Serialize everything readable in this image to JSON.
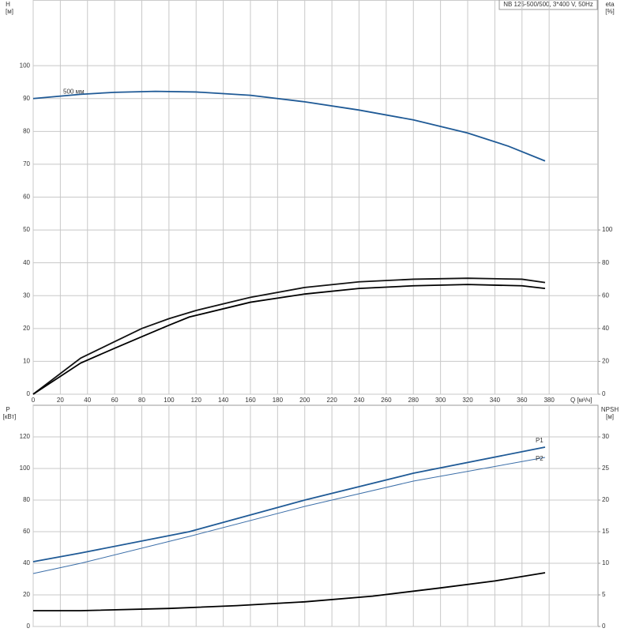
{
  "chart_data": [
    {
      "type": "line",
      "title": "NB 125-500/500, 3*400 V, 50Hz",
      "annotation": "500 мм",
      "ylabel": "H",
      "yunit": "[м]",
      "y2label": "eta",
      "y2unit": "[%]",
      "xlabel": "Q [м³/ч]",
      "xlim": [
        0,
        416
      ],
      "xticks": [
        0,
        20,
        40,
        60,
        80,
        100,
        120,
        140,
        160,
        180,
        200,
        220,
        240,
        260,
        280,
        300,
        320,
        340,
        360,
        380
      ],
      "ylim": [
        0,
        120
      ],
      "yticks": [
        0,
        10,
        20,
        30,
        40,
        50,
        60,
        70,
        80,
        90,
        100
      ],
      "y2lim": [
        0,
        240
      ],
      "y2ticks": [
        0,
        20,
        40,
        60,
        80,
        100
      ],
      "grid": true,
      "series": [
        {
          "color": "#1f5a96",
          "x": [
            0,
            35,
            60,
            90,
            120,
            160,
            200,
            240,
            280,
            320,
            350,
            377
          ],
          "values": [
            90,
            91.3,
            91.9,
            92.2,
            92,
            91,
            89,
            86.5,
            83.5,
            79.5,
            75.5,
            71
          ]
        },
        {
          "color": "#111111",
          "axis": "y2",
          "x": [
            0,
            35,
            60,
            80,
            100,
            120,
            160,
            200,
            240,
            280,
            320,
            360,
            377
          ],
          "values": [
            0,
            22,
            32,
            40,
            46,
            51,
            59,
            65,
            68.4,
            70,
            70.6,
            70,
            68
          ]
        },
        {
          "color": "#000000",
          "axis": "y2",
          "x": [
            0,
            35,
            60,
            80,
            100,
            115,
            160,
            200,
            240,
            280,
            320,
            360,
            377
          ],
          "values": [
            0,
            19,
            28,
            35,
            42,
            47,
            56,
            61,
            64.4,
            66,
            66.8,
            66,
            64.4
          ]
        }
      ]
    },
    {
      "type": "line",
      "ylabel": "P",
      "yunit": "[кВт]",
      "y2label": "NPSH",
      "y2unit": "[м]",
      "xlim": [
        0,
        416
      ],
      "ylim": [
        0,
        140
      ],
      "yticks": [
        0,
        20,
        40,
        60,
        80,
        100,
        120
      ],
      "y2lim": [
        0,
        35
      ],
      "y2ticks": [
        0,
        5,
        10,
        15,
        20,
        25,
        30
      ],
      "grid": true,
      "series": [
        {
          "name": "P1",
          "color": "#1f5a96",
          "x": [
            0,
            35,
            115,
            200,
            280,
            377
          ],
          "values": [
            41,
            46.5,
            60,
            80,
            97,
            113.5
          ]
        },
        {
          "name": "P2",
          "color": "#3b6ea8",
          "x": [
            0,
            35,
            115,
            200,
            280,
            377
          ],
          "values": [
            33.5,
            40,
            57,
            76,
            92,
            107
          ]
        },
        {
          "color": "#000000",
          "axis": "y2",
          "x": [
            0,
            35,
            100,
            150,
            200,
            250,
            300,
            340,
            377
          ],
          "values": [
            2.5,
            2.5,
            2.85,
            3.3,
            3.9,
            4.8,
            6.1,
            7.2,
            8.5
          ]
        }
      ]
    }
  ]
}
